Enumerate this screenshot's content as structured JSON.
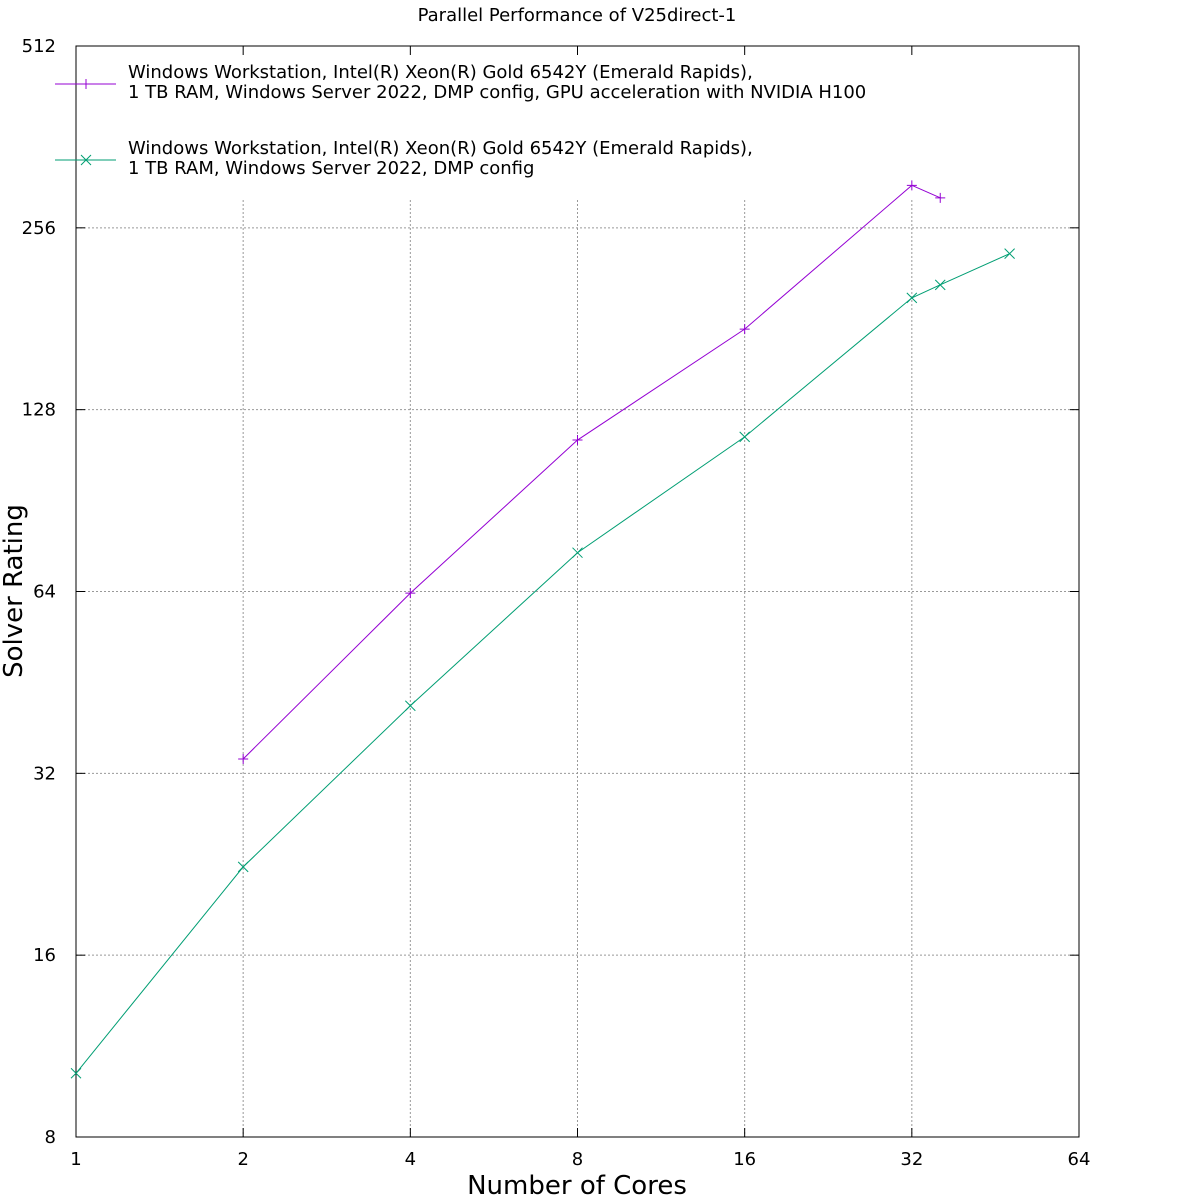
{
  "chart_data": {
    "type": "line",
    "title": "Parallel Performance of V25direct-1",
    "xlabel": "Number of Cores",
    "ylabel": "Solver Rating",
    "xscale": "log2",
    "yscale": "log2",
    "xlim": [
      1,
      64
    ],
    "ylim": [
      8,
      512
    ],
    "xticks": [
      1,
      2,
      4,
      8,
      16,
      32,
      64
    ],
    "yticks": [
      8,
      16,
      32,
      64,
      128,
      256,
      512
    ],
    "grid": true,
    "legend_position": "top-left",
    "series": [
      {
        "name_line1": "Windows Workstation, Intel(R) Xeon(R) Gold 6542Y (Emerald Rapids),",
        "name_line2": "1 TB RAM, Windows Server 2022, DMP config, GPU acceleration with NVIDIA H100",
        "color": "#9400d3",
        "marker": "plus",
        "x": [
          2,
          4,
          8,
          16,
          32,
          36
        ],
        "y": [
          33.8,
          63.6,
          114,
          174,
          301,
          287
        ]
      },
      {
        "name_line1": "Windows Workstation, Intel(R) Xeon(R) Gold 6542Y (Emerald Rapids),",
        "name_line2": "1 TB RAM, Windows Server 2022, DMP config",
        "color": "#009e73",
        "marker": "cross",
        "x": [
          1,
          2,
          4,
          8,
          16,
          32,
          36,
          48
        ],
        "y": [
          10.2,
          22.4,
          41.4,
          74.2,
          115.4,
          196,
          206,
          232
        ]
      }
    ]
  }
}
